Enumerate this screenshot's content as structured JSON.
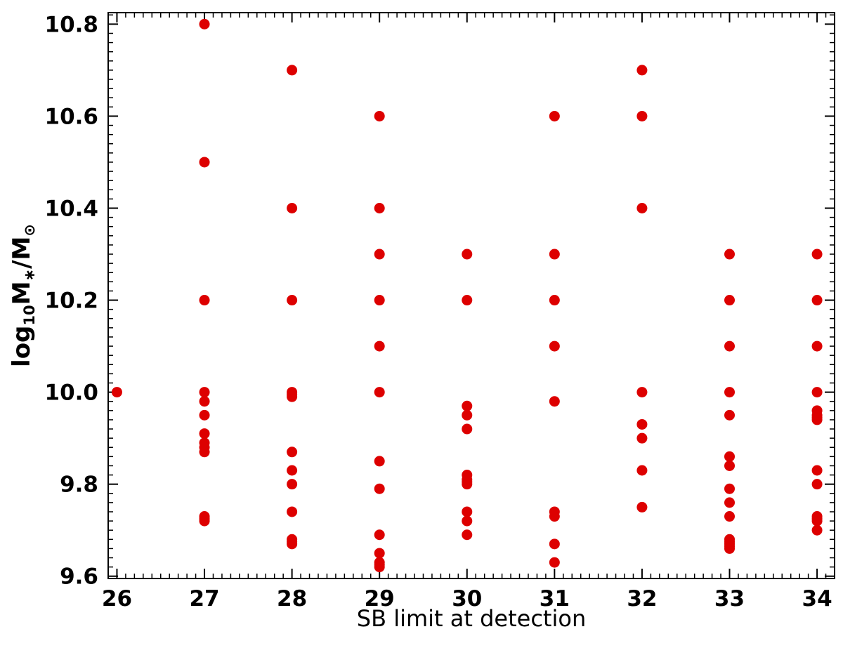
{
  "chart_data": {
    "type": "scatter",
    "title": "",
    "xlabel": "SB limit at detection",
    "ylabel": {
      "prefix": "log",
      "sub1": "10",
      "mid": "M",
      "sub2": "∗",
      "sep": "/M",
      "sub3": "⊙"
    },
    "xlim": [
      25.9,
      34.2
    ],
    "ylim": [
      9.595,
      10.825
    ],
    "xticks": [
      26,
      27,
      28,
      29,
      30,
      31,
      32,
      33,
      34
    ],
    "yticks": [
      9.6,
      9.8,
      10.0,
      10.2,
      10.4,
      10.6,
      10.8
    ],
    "ytick_labels": [
      "9.6",
      "9.8",
      "10.0",
      "10.2",
      "10.4",
      "10.6",
      "10.8"
    ],
    "grid": false,
    "legend": "none",
    "marker_color": "#dd0000",
    "points": [
      [
        26,
        10.0
      ],
      [
        27,
        10.8
      ],
      [
        27,
        10.5
      ],
      [
        27,
        10.2
      ],
      [
        27,
        10.0
      ],
      [
        27,
        9.98
      ],
      [
        27,
        9.95
      ],
      [
        27,
        9.91
      ],
      [
        27,
        9.89
      ],
      [
        27,
        9.88
      ],
      [
        27,
        9.87
      ],
      [
        27,
        9.73
      ],
      [
        27,
        9.725
      ],
      [
        27,
        9.72
      ],
      [
        28,
        10.7
      ],
      [
        28,
        10.4
      ],
      [
        28,
        10.2
      ],
      [
        28,
        10.0
      ],
      [
        28,
        9.995
      ],
      [
        28,
        9.99
      ],
      [
        28,
        9.87
      ],
      [
        28,
        9.83
      ],
      [
        28,
        9.8
      ],
      [
        28,
        9.74
      ],
      [
        28,
        9.68
      ],
      [
        28,
        9.675
      ],
      [
        28,
        9.67
      ],
      [
        29,
        10.6
      ],
      [
        29,
        10.4
      ],
      [
        29,
        10.3
      ],
      [
        29,
        10.2
      ],
      [
        29,
        10.1
      ],
      [
        29,
        10.0
      ],
      [
        29,
        9.85
      ],
      [
        29,
        9.79
      ],
      [
        29,
        9.69
      ],
      [
        29,
        9.65
      ],
      [
        29,
        9.63
      ],
      [
        29,
        9.625
      ],
      [
        29,
        9.62
      ],
      [
        30,
        10.3
      ],
      [
        30,
        10.2
      ],
      [
        30,
        9.97
      ],
      [
        30,
        9.95
      ],
      [
        30,
        9.92
      ],
      [
        30,
        9.82
      ],
      [
        30,
        9.81
      ],
      [
        30,
        9.805
      ],
      [
        30,
        9.8
      ],
      [
        30,
        9.74
      ],
      [
        30,
        9.72
      ],
      [
        30,
        9.69
      ],
      [
        31,
        10.6
      ],
      [
        31,
        10.3
      ],
      [
        31,
        10.2
      ],
      [
        31,
        10.1
      ],
      [
        31,
        9.98
      ],
      [
        31,
        9.74
      ],
      [
        31,
        9.73
      ],
      [
        31,
        9.67
      ],
      [
        31,
        9.63
      ],
      [
        32,
        10.7
      ],
      [
        32,
        10.6
      ],
      [
        32,
        10.4
      ],
      [
        32,
        10.0
      ],
      [
        32,
        9.93
      ],
      [
        32,
        9.9
      ],
      [
        32,
        9.83
      ],
      [
        32,
        9.75
      ],
      [
        33,
        10.3
      ],
      [
        33,
        10.2
      ],
      [
        33,
        10.1
      ],
      [
        33,
        10.0
      ],
      [
        33,
        9.95
      ],
      [
        33,
        9.86
      ],
      [
        33,
        9.84
      ],
      [
        33,
        9.79
      ],
      [
        33,
        9.76
      ],
      [
        33,
        9.73
      ],
      [
        33,
        9.68
      ],
      [
        33,
        9.675
      ],
      [
        33,
        9.67
      ],
      [
        33,
        9.665
      ],
      [
        33,
        9.66
      ],
      [
        34,
        10.3
      ],
      [
        34,
        10.2
      ],
      [
        34,
        10.1
      ],
      [
        34,
        10.0
      ],
      [
        34,
        9.96
      ],
      [
        34,
        9.95
      ],
      [
        34,
        9.945
      ],
      [
        34,
        9.94
      ],
      [
        34,
        9.83
      ],
      [
        34,
        9.8
      ],
      [
        34,
        9.73
      ],
      [
        34,
        9.725
      ],
      [
        34,
        9.72
      ],
      [
        34,
        9.7
      ]
    ]
  }
}
